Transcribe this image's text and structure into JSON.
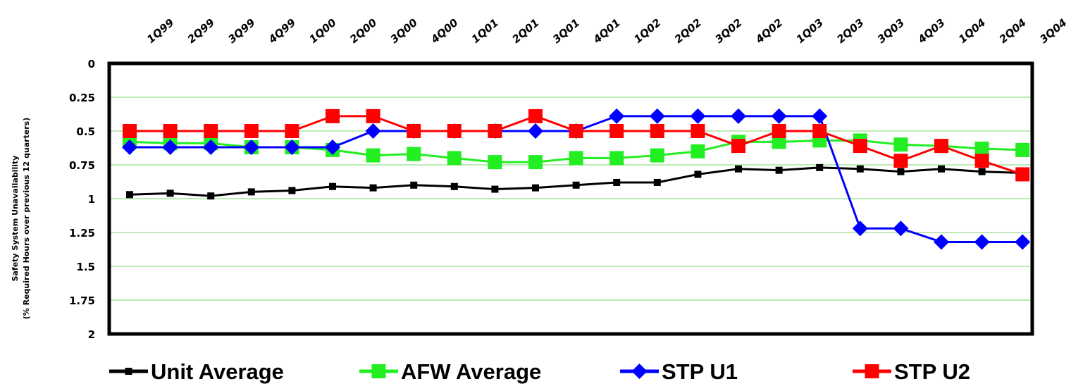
{
  "chart_data": {
    "type": "line",
    "categories": [
      "1Q99",
      "2Q99",
      "3Q99",
      "4Q99",
      "1Q00",
      "2Q00",
      "3Q00",
      "4Q00",
      "1Q01",
      "2Q01",
      "3Q01",
      "4Q01",
      "1Q02",
      "2Q02",
      "3Q02",
      "4Q02",
      "1Q03",
      "2Q03",
      "3Q03",
      "4Q03",
      "1Q04",
      "2Q04",
      "3Q04"
    ],
    "ylabel_line1": "Safety System Unavailability",
    "ylabel_line2": "(% Required Hours over previous 12 quarters)",
    "ylim": [
      0,
      2
    ],
    "y_inverted": true,
    "y_ticks": [
      0,
      0.25,
      0.5,
      0.75,
      1,
      1.25,
      1.5,
      1.75,
      2
    ],
    "y_tick_labels": [
      "0",
      "0.25",
      "0.5",
      "0.75",
      "1",
      "1.25",
      "1.5",
      "1.75",
      "2"
    ],
    "grid": true,
    "grid_color": "#a8e4a0",
    "legend_position": "bottom",
    "series": [
      {
        "name": "Unit Average",
        "color": "#000000",
        "marker": "small-square",
        "values": [
          0.97,
          0.96,
          0.98,
          0.95,
          0.94,
          0.91,
          0.92,
          0.9,
          0.91,
          0.93,
          0.92,
          0.9,
          0.88,
          0.88,
          0.82,
          0.78,
          0.79,
          0.77,
          0.78,
          0.8,
          0.78,
          0.8,
          0.81
        ]
      },
      {
        "name": "AFW Average",
        "color": "#22ee22",
        "marker": "square",
        "values": [
          0.58,
          0.59,
          0.59,
          0.62,
          0.62,
          0.64,
          0.68,
          0.67,
          0.7,
          0.73,
          0.73,
          0.7,
          0.7,
          0.68,
          0.65,
          0.58,
          0.58,
          0.57,
          0.57,
          0.6,
          0.61,
          0.63,
          0.64
        ]
      },
      {
        "name": "STP U1",
        "color": "#0000ff",
        "marker": "diamond",
        "values": [
          0.62,
          0.62,
          0.62,
          0.62,
          0.62,
          0.62,
          0.5,
          0.5,
          0.5,
          0.5,
          0.5,
          0.5,
          0.39,
          0.39,
          0.39,
          0.39,
          0.39,
          0.39,
          1.22,
          1.22,
          1.32,
          1.32,
          1.32
        ]
      },
      {
        "name": "STP U2",
        "color": "#ff0000",
        "marker": "square",
        "values": [
          0.5,
          0.5,
          0.5,
          0.5,
          0.5,
          0.39,
          0.39,
          0.5,
          0.5,
          0.5,
          0.39,
          0.5,
          0.5,
          0.5,
          0.5,
          0.61,
          0.5,
          0.5,
          0.61,
          0.72,
          0.61,
          0.72,
          0.82
        ]
      }
    ]
  }
}
